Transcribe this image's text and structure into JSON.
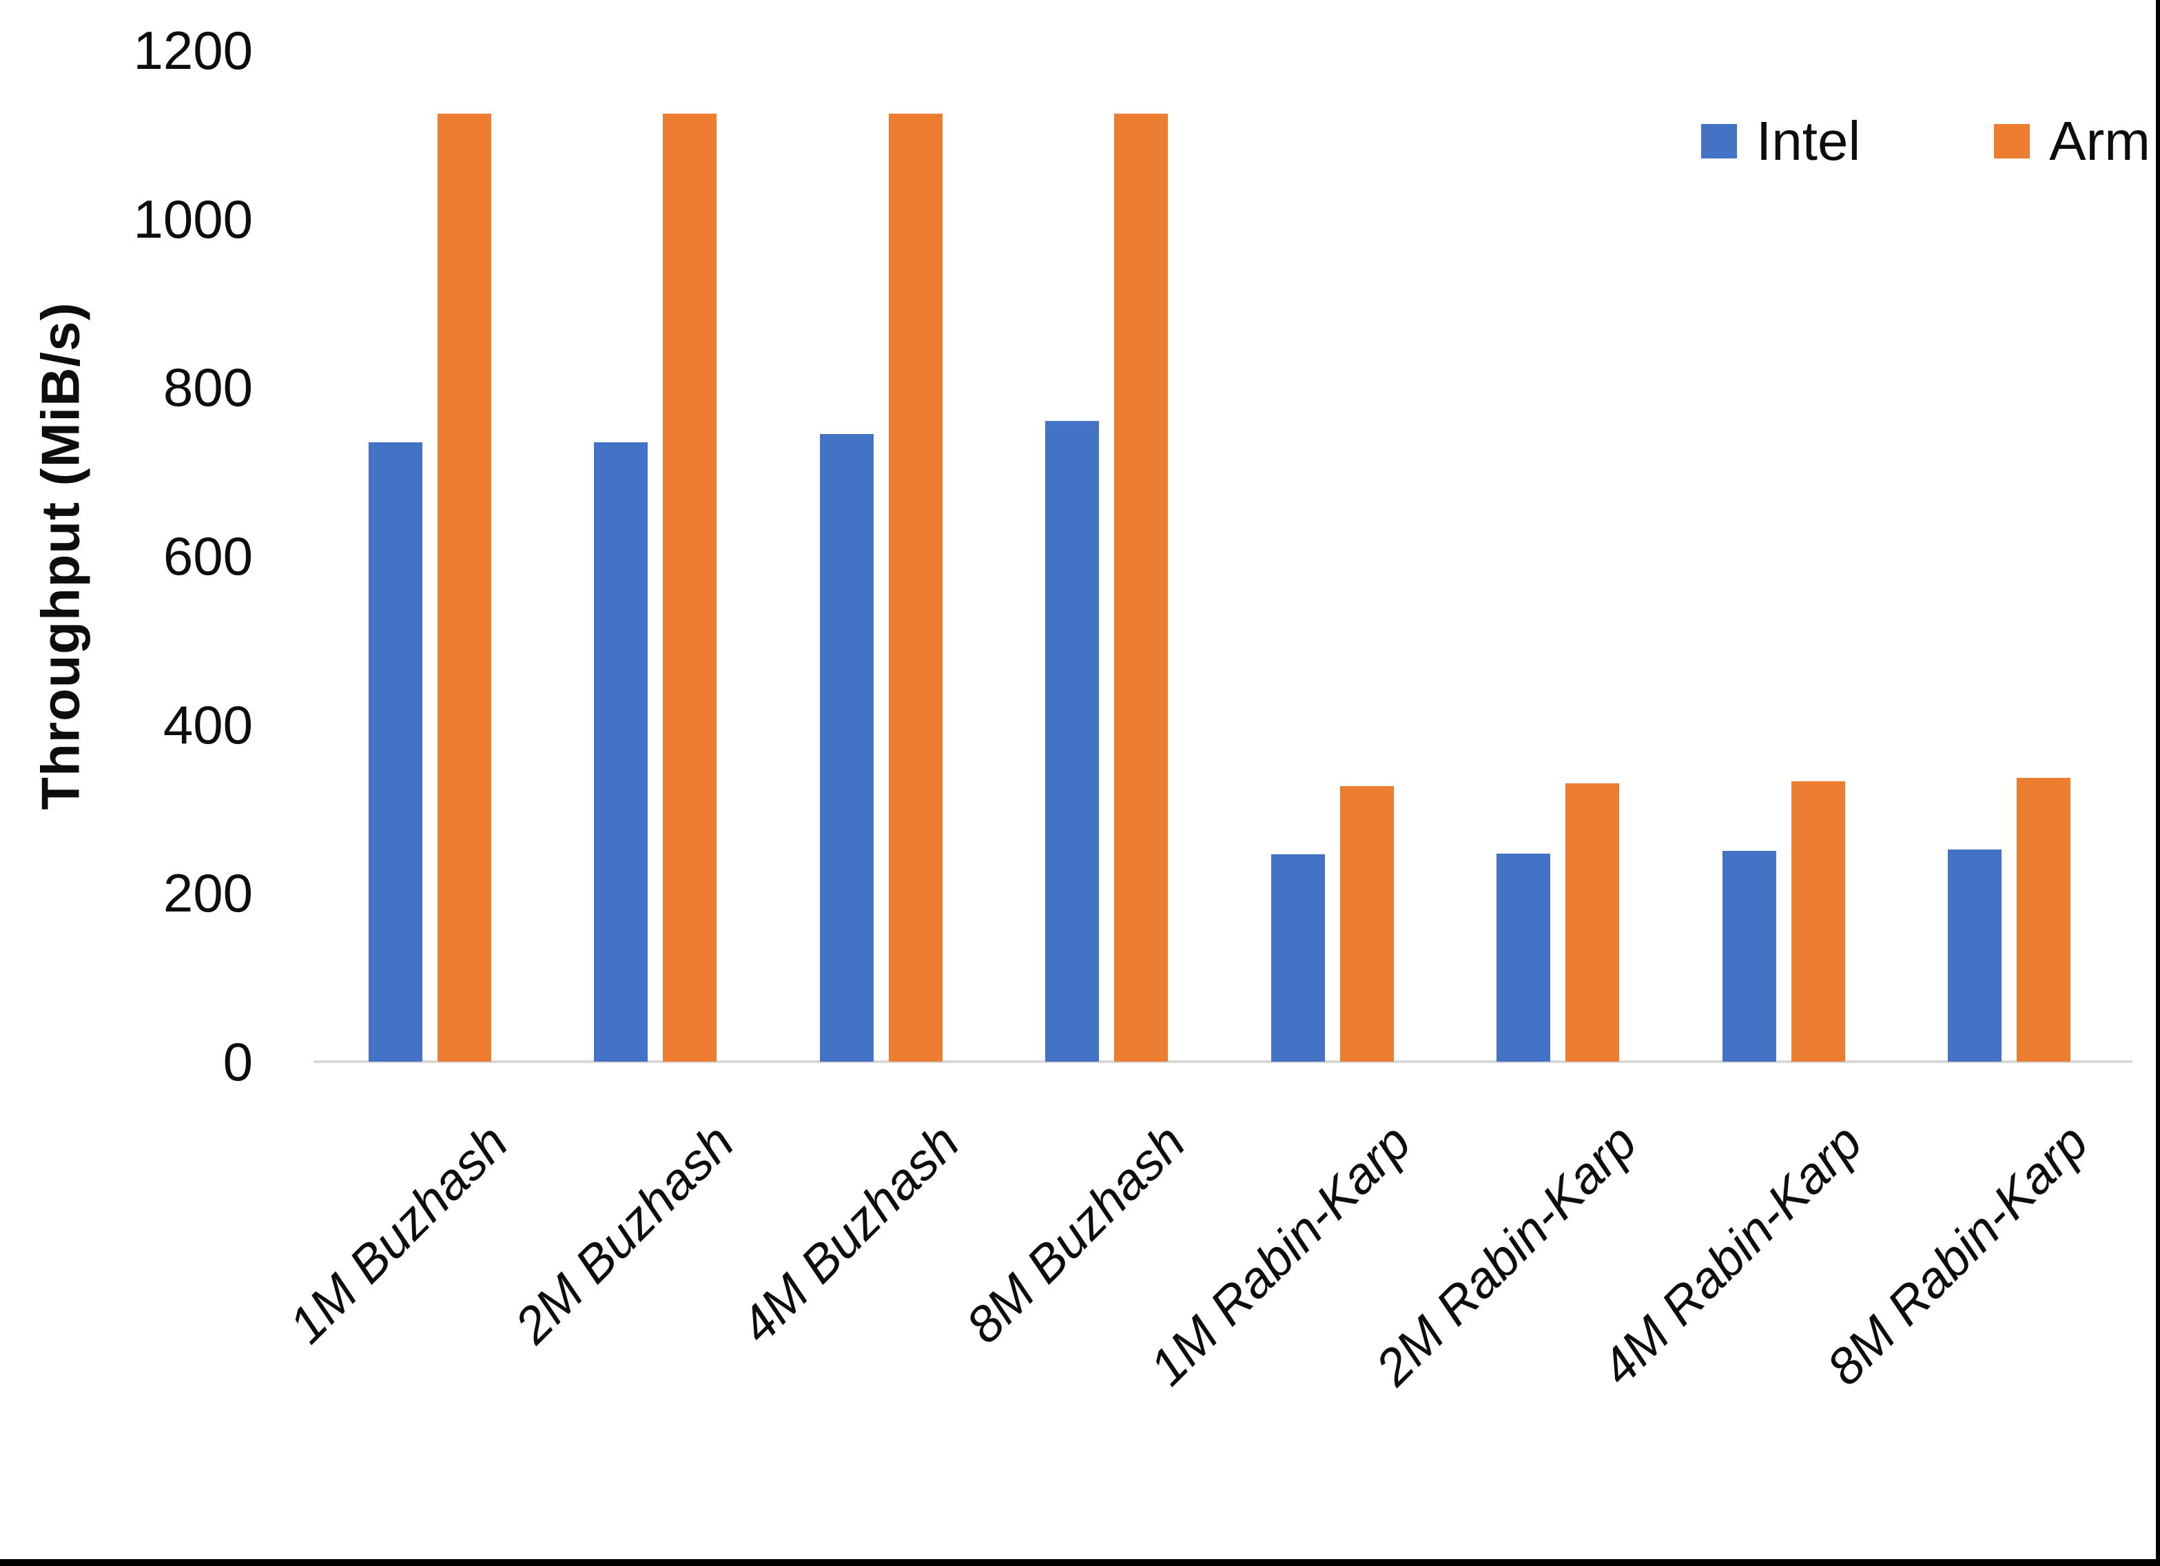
{
  "chart_data": {
    "type": "bar",
    "title": "",
    "ylabel": "Throughput (MiB/s)",
    "xlabel": "",
    "ylim": [
      0,
      1200
    ],
    "y_ticks": [
      0,
      200,
      400,
      600,
      800,
      1000,
      1200
    ],
    "grid": false,
    "legend_position": "top-right",
    "categories": [
      "1M Buzhash",
      "2M Buzhash",
      "4M Buzhash",
      "8M Buzhash",
      "1M Rabin-Karp",
      "2M Rabin-Karp",
      "4M Rabin-Karp",
      "8M Rabin-Karp"
    ],
    "series": [
      {
        "name": "Intel",
        "color": "#4472C4",
        "values": [
          735,
          735,
          745,
          760,
          246,
          247,
          250,
          252
        ]
      },
      {
        "name": "Arm",
        "color": "#ED7D31",
        "values": [
          1125,
          1125,
          1125,
          1125,
          327,
          330,
          333,
          337
        ]
      }
    ],
    "axis_line_color": "#d9d9d9",
    "text_color": "#0d0d0d"
  }
}
